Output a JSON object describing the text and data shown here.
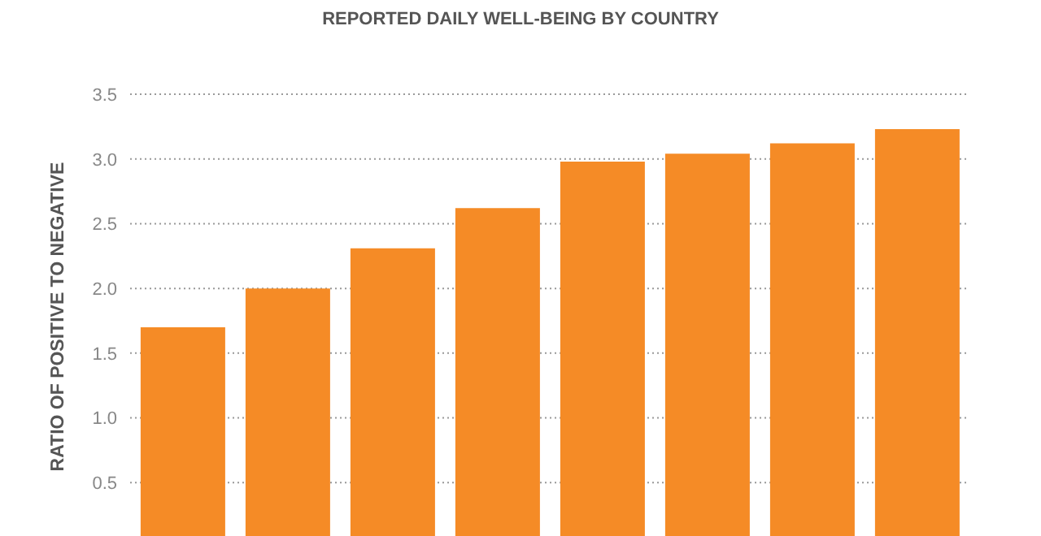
{
  "chart_data": {
    "type": "bar",
    "title": "REPORTED DAILY WELL-BEING BY COUNTRY",
    "ylabel": "RATIO OF POSITIVE TO NEGATIVE",
    "categories": [
      null,
      null,
      null,
      null,
      null,
      null,
      null,
      null
    ],
    "values": [
      1.7,
      2.0,
      2.31,
      2.62,
      2.98,
      3.04,
      3.12,
      3.23
    ],
    "color": "#f58b26",
    "ylim": [
      0,
      3.5
    ],
    "yticks": [
      0.5,
      {
        "value": 1,
        "label": "1.0"
      },
      1.5,
      {
        "value": 2,
        "label": "2.0"
      },
      2.5,
      {
        "value": 3,
        "label": "3.0"
      },
      3.5
    ],
    "grid": "y",
    "tick_labels": "y"
  }
}
